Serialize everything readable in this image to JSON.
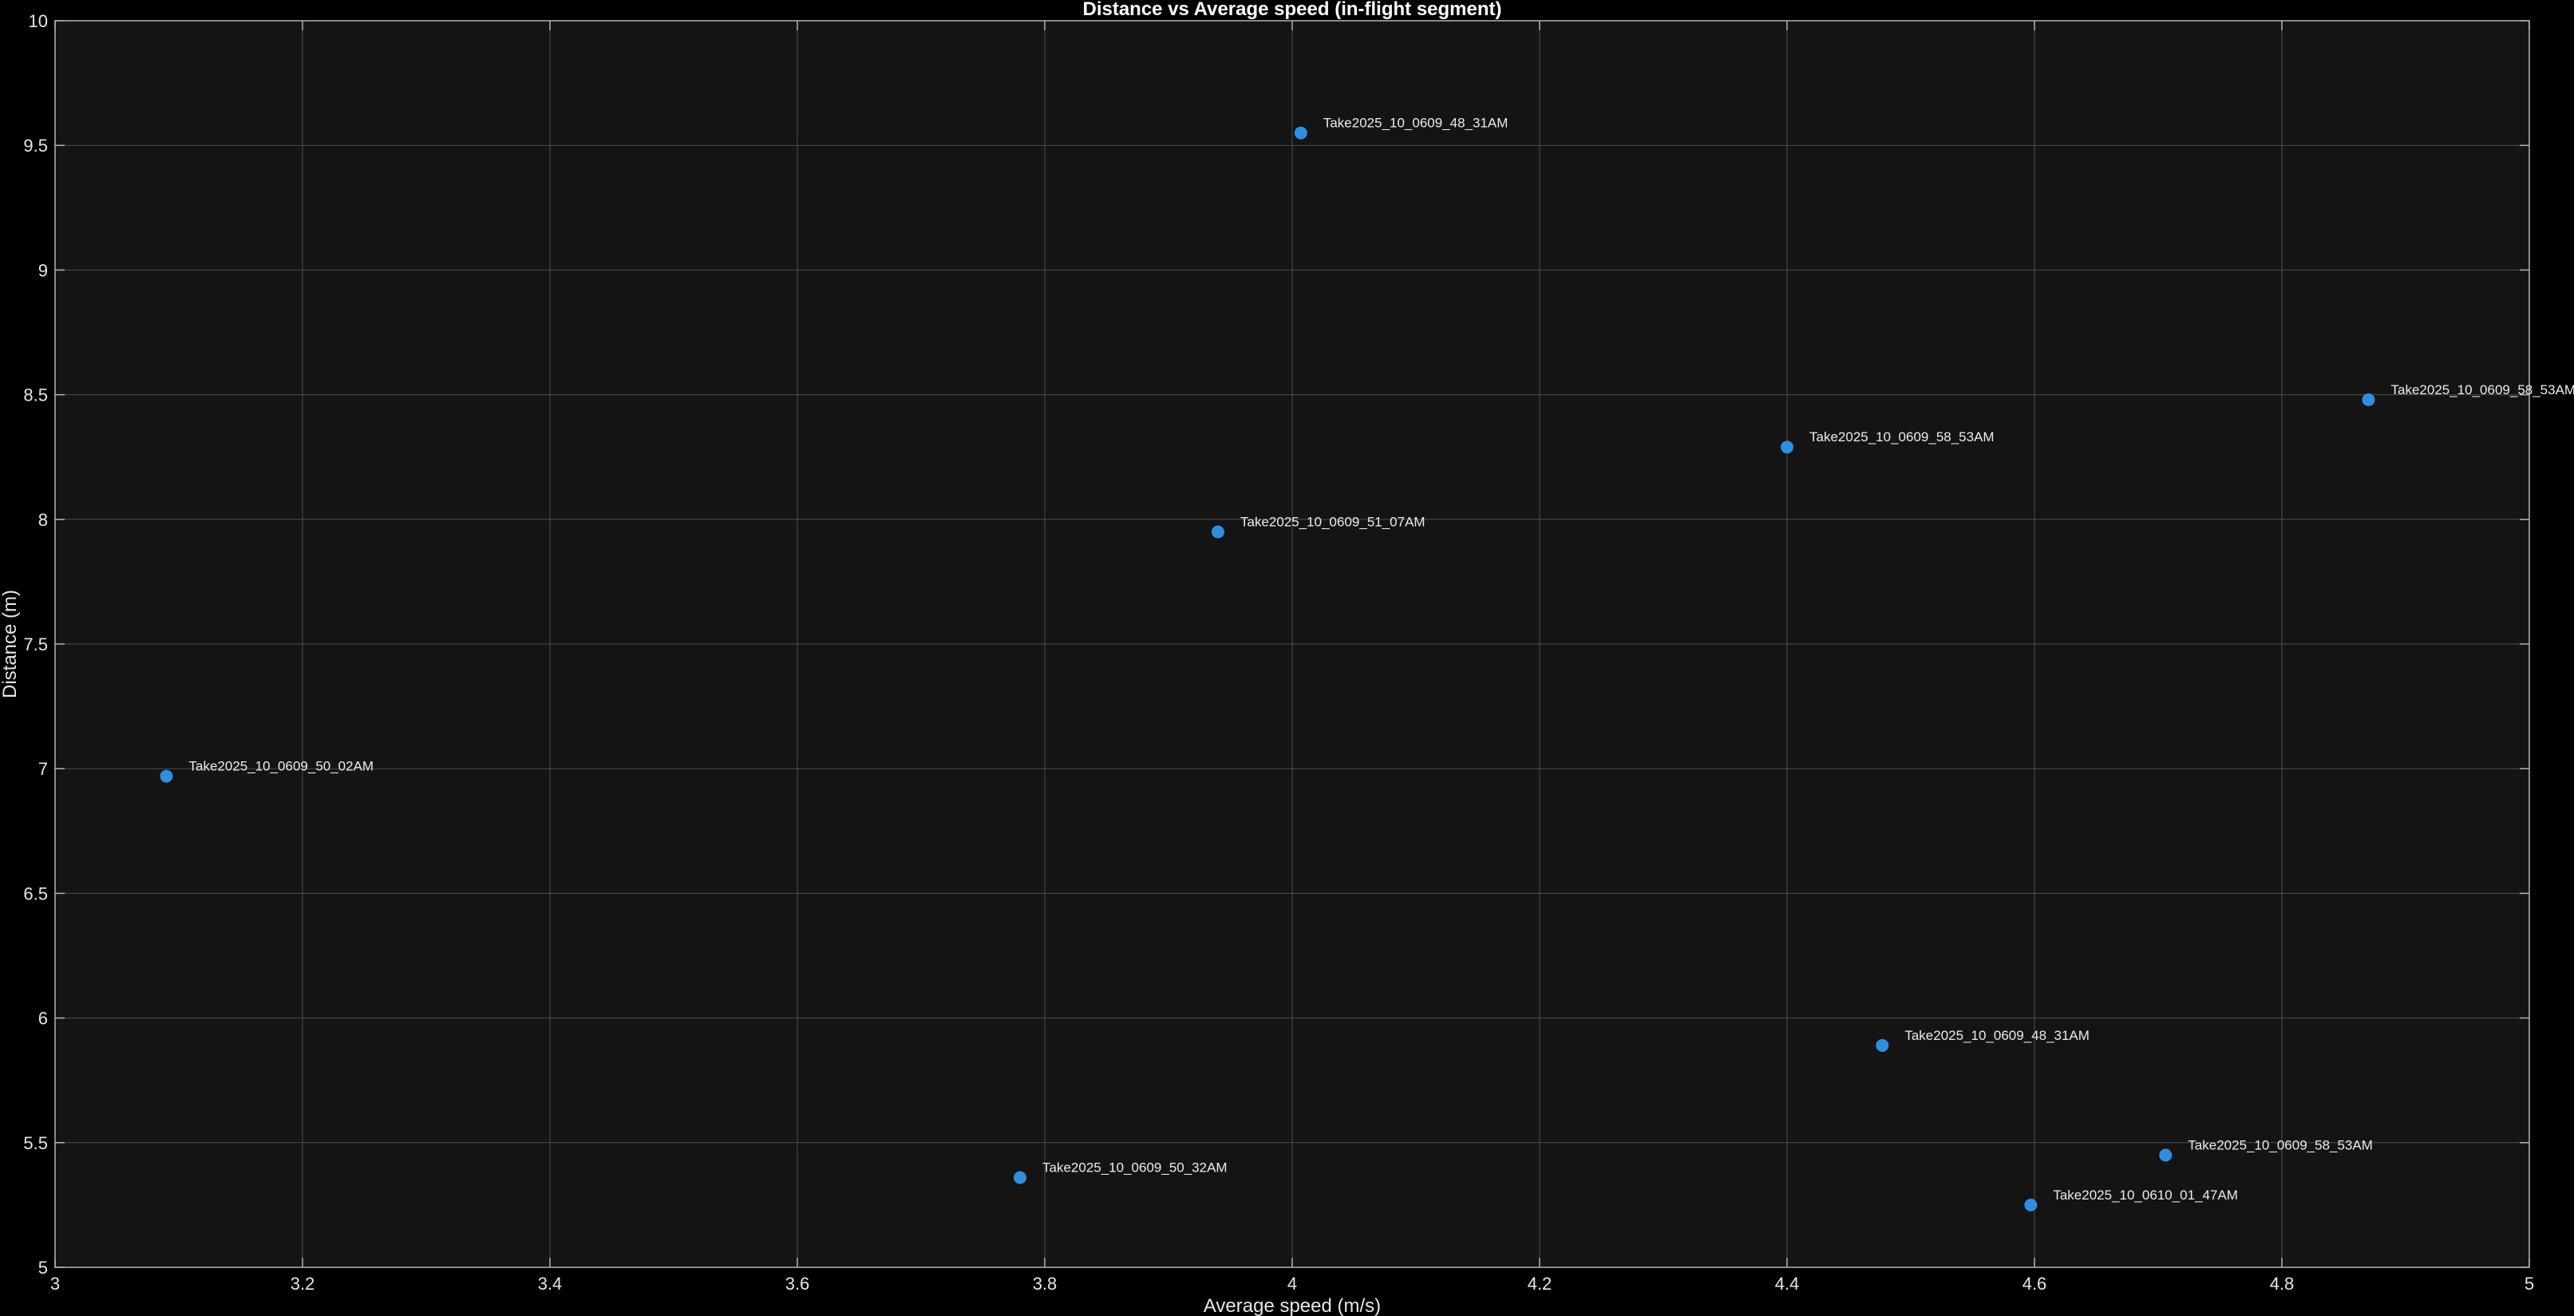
{
  "chart_data": {
    "type": "scatter",
    "title": "Distance vs Average speed (in-flight segment)",
    "xlabel": "Average speed (m/s)",
    "ylabel": "Distance (m)",
    "xlim": [
      3,
      5
    ],
    "ylim": [
      5,
      10
    ],
    "xticks": [
      3,
      3.2,
      3.4,
      3.6,
      3.8,
      4,
      4.2,
      4.4,
      4.6,
      4.8,
      5
    ],
    "xtick_labels": [
      "3",
      "3.2",
      "3.4",
      "3.6",
      "3.8",
      "4",
      "4.2",
      "4.4",
      "4.6",
      "4.8",
      "5"
    ],
    "yticks": [
      5,
      5.5,
      6,
      6.5,
      7,
      7.5,
      8,
      8.5,
      9,
      9.5,
      10
    ],
    "ytick_labels": [
      "5",
      "5.5",
      "6",
      "6.5",
      "7",
      "7.5",
      "8",
      "8.5",
      "9",
      "9.5",
      "10"
    ],
    "grid": true,
    "points": [
      {
        "x": 4.007,
        "y": 9.55,
        "label": "Take2025_10_0609_48_31AM"
      },
      {
        "x": 4.87,
        "y": 8.48,
        "label": "Take2025_10_0609_58_53AM"
      },
      {
        "x": 4.4,
        "y": 8.29,
        "label": "Take2025_10_0609_58_53AM"
      },
      {
        "x": 3.94,
        "y": 7.95,
        "label": "Take2025_10_0609_51_07AM"
      },
      {
        "x": 3.09,
        "y": 6.97,
        "label": "Take2025_10_0609_50_02AM"
      },
      {
        "x": 4.477,
        "y": 5.89,
        "label": "Take2025_10_0609_48_31AM"
      },
      {
        "x": 4.706,
        "y": 5.45,
        "label": "Take2025_10_0609_58_53AM"
      },
      {
        "x": 4.597,
        "y": 5.25,
        "label": "Take2025_10_0610_01_47AM"
      },
      {
        "x": 3.78,
        "y": 5.36,
        "label": "Take2025_10_0609_50_32AM"
      }
    ],
    "colors": {
      "figure_background": "#000000",
      "axes_background": "#141414",
      "grid": "#4d4d4d",
      "axes_edge": "#b3b3b3",
      "marker": "#2e8fdf",
      "text": "#e6e6e6"
    }
  }
}
